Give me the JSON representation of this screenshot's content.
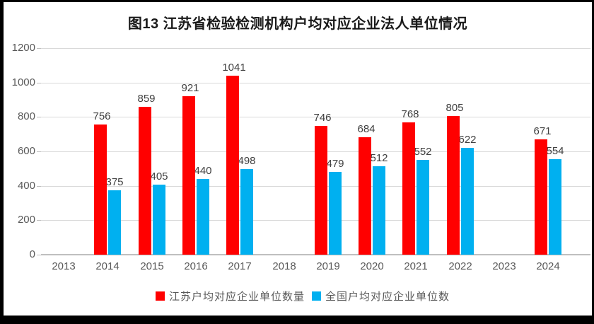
{
  "title": "图13 江苏省检验检测机构户均对应企业法人单位情况",
  "chart_data": {
    "type": "bar",
    "title": "图13 江苏省检验检测机构户均对应企业法人单位情况",
    "categories": [
      "2013",
      "2014",
      "2015",
      "2016",
      "2017",
      "2018",
      "2019",
      "2020",
      "2021",
      "2022",
      "2023",
      "2024"
    ],
    "series": [
      {
        "name": "江苏户均对应企业单位数量",
        "color": "#ff0000",
        "values": [
          null,
          756,
          859,
          921,
          1041,
          null,
          746,
          684,
          768,
          805,
          null,
          671
        ]
      },
      {
        "name": "全国户均对应企业单位数",
        "color": "#00b0f0",
        "values": [
          null,
          375,
          405,
          440,
          498,
          null,
          479,
          512,
          552,
          622,
          null,
          554
        ]
      }
    ],
    "xlabel": "",
    "ylabel": "",
    "ylim": [
      0,
      1200
    ],
    "yticks": [
      0,
      200,
      400,
      600,
      800,
      1000,
      1200
    ],
    "grid": true,
    "legend_position": "bottom",
    "colors": {
      "axis_text": "#595959",
      "value_label_text": "#404040",
      "gridline": "#d9d9d9",
      "baseline": "#bfbfbf",
      "title_text": "#1a1a1a",
      "frame_border": "#000000",
      "background": "#ffffff"
    }
  }
}
